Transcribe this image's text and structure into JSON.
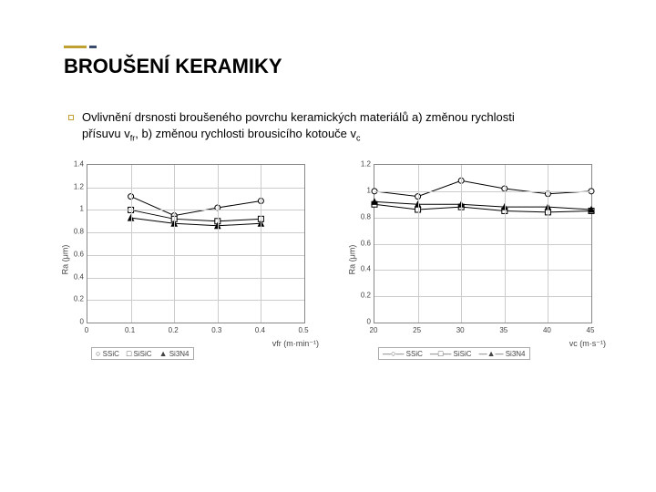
{
  "title": "BROUŠENÍ KERAMIKY",
  "subtitle_parts": {
    "p1": "Ovlivnění drsnosti broušeného povrchu keramických materiálů a) změnou rychlosti",
    "p2": "přísuvu v",
    "p2sub": "fr",
    "p3": ", b) změnou rychlosti brousicího kotouče v",
    "p3sub": "c"
  },
  "chart_a": {
    "y_label": "Ra (μm)",
    "x_label": "vfr (m·min⁻¹)",
    "y_ticks": [
      "0",
      "0.2",
      "0.4",
      "0.6",
      "0.8",
      "1",
      "1.2",
      "1.4"
    ],
    "x_ticks": [
      "0",
      "0.1",
      "0.2",
      "0.3",
      "0.4",
      "0.5"
    ],
    "y_min": 0,
    "y_max": 1.4,
    "x_min": 0,
    "x_max": 0.5,
    "grid_color": "#cccccc",
    "border_color": "#888888",
    "background": "#ffffff",
    "series": [
      {
        "name": "SSiC",
        "marker": "circle",
        "color": "#000000",
        "fill": "none",
        "data": [
          [
            0.1,
            1.12
          ],
          [
            0.2,
            0.95
          ],
          [
            0.3,
            1.02
          ],
          [
            0.4,
            1.08
          ]
        ]
      },
      {
        "name": "SiSiC",
        "marker": "square",
        "color": "#000000",
        "fill": "none",
        "data": [
          [
            0.1,
            1.0
          ],
          [
            0.2,
            0.92
          ],
          [
            0.3,
            0.9
          ],
          [
            0.4,
            0.92
          ]
        ]
      },
      {
        "name": "Si3N4",
        "marker": "triangle",
        "color": "#000000",
        "fill": "#000000",
        "data": [
          [
            0.1,
            0.93
          ],
          [
            0.2,
            0.88
          ],
          [
            0.3,
            0.86
          ],
          [
            0.4,
            0.88
          ]
        ]
      }
    ],
    "legend_labels": [
      "SSiC",
      "SiSiC",
      "Si3N4"
    ],
    "legend_markers": [
      "○",
      "□",
      "▲"
    ]
  },
  "chart_b": {
    "y_label": "Ra (μm)",
    "x_label": "vc (m·s⁻¹)",
    "y_ticks": [
      "0",
      "0.2",
      "0.4",
      "0.6",
      "0.8",
      "1",
      "1.2"
    ],
    "x_ticks": [
      "20",
      "25",
      "30",
      "35",
      "40",
      "45"
    ],
    "y_min": 0,
    "y_max": 1.2,
    "x_min": 20,
    "x_max": 45,
    "grid_color": "#cccccc",
    "border_color": "#888888",
    "background": "#ffffff",
    "series": [
      {
        "name": "SSiC",
        "marker": "circle",
        "color": "#000000",
        "fill": "none",
        "data": [
          [
            20,
            1.0
          ],
          [
            25,
            0.96
          ],
          [
            30,
            1.08
          ],
          [
            35,
            1.02
          ],
          [
            40,
            0.98
          ],
          [
            45,
            1.0
          ]
        ]
      },
      {
        "name": "SiSiC",
        "marker": "square",
        "color": "#000000",
        "fill": "none",
        "data": [
          [
            20,
            0.9
          ],
          [
            25,
            0.86
          ],
          [
            30,
            0.88
          ],
          [
            35,
            0.85
          ],
          [
            40,
            0.84
          ],
          [
            45,
            0.85
          ]
        ]
      },
      {
        "name": "Si3N4",
        "marker": "triangle",
        "color": "#000000",
        "fill": "#000000",
        "data": [
          [
            20,
            0.92
          ],
          [
            25,
            0.9
          ],
          [
            30,
            0.9
          ],
          [
            35,
            0.88
          ],
          [
            40,
            0.88
          ],
          [
            45,
            0.86
          ]
        ]
      }
    ],
    "legend_labels": [
      "SSiC",
      "SiSiC",
      "Si3N4"
    ],
    "legend_markers": [
      "—○—",
      "—□—",
      "—▲—"
    ]
  },
  "style": {
    "title_fontsize": 22,
    "subtitle_fontsize": 13,
    "tick_fontsize": 8,
    "axis_label_fontsize": 9,
    "legend_fontsize": 8,
    "line_width": 1,
    "marker_size": 3
  }
}
